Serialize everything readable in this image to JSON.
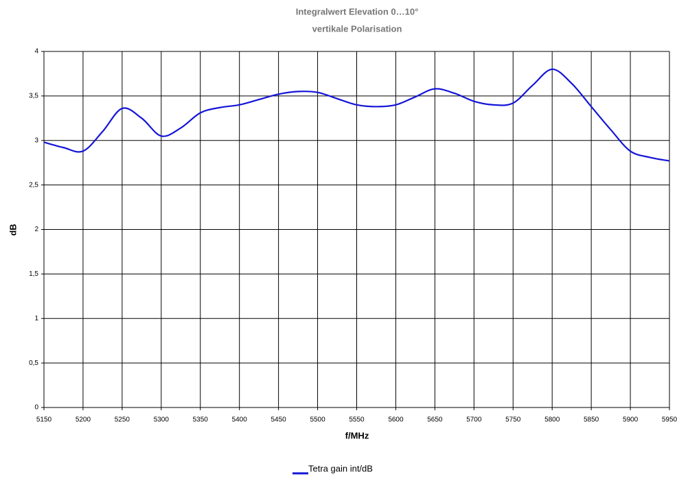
{
  "chart_data": {
    "type": "line",
    "title": "Integralwert Elevation 0…10°",
    "subtitle": "vertikale Polarisation",
    "x_label": "f/MHz",
    "y_label": "dB",
    "x": [
      5150,
      5175,
      5200,
      5225,
      5250,
      5275,
      5300,
      5325,
      5350,
      5375,
      5400,
      5425,
      5450,
      5475,
      5500,
      5525,
      5550,
      5575,
      5600,
      5625,
      5650,
      5675,
      5700,
      5725,
      5750,
      5775,
      5800,
      5825,
      5850,
      5875,
      5900,
      5925,
      5950
    ],
    "series": [
      {
        "name": "Tetra gain int/dB",
        "color": "#1414d8",
        "values": [
          2.98,
          2.92,
          2.88,
          3.1,
          3.36,
          3.25,
          3.05,
          3.14,
          3.31,
          3.37,
          3.4,
          3.46,
          3.52,
          3.55,
          3.54,
          3.47,
          3.4,
          3.38,
          3.4,
          3.49,
          3.58,
          3.53,
          3.44,
          3.4,
          3.42,
          3.62,
          3.8,
          3.64,
          3.38,
          3.12,
          2.88,
          2.81,
          2.77
        ]
      }
    ],
    "xlim": [
      5150,
      5950
    ],
    "xticks": [
      5150,
      5200,
      5250,
      5300,
      5350,
      5400,
      5450,
      5500,
      5550,
      5600,
      5650,
      5700,
      5750,
      5800,
      5850,
      5900,
      5950
    ],
    "ylim": [
      0,
      4
    ],
    "yticks": [
      0,
      {
        "value": 0.5,
        "label": "0,5"
      },
      1,
      {
        "value": 1.5,
        "label": "1,5"
      },
      2,
      {
        "value": 2.5,
        "label": "2,5"
      },
      3,
      {
        "value": 3.5,
        "label": "3,5"
      },
      4
    ],
    "grid": true,
    "legend": "bottom"
  }
}
